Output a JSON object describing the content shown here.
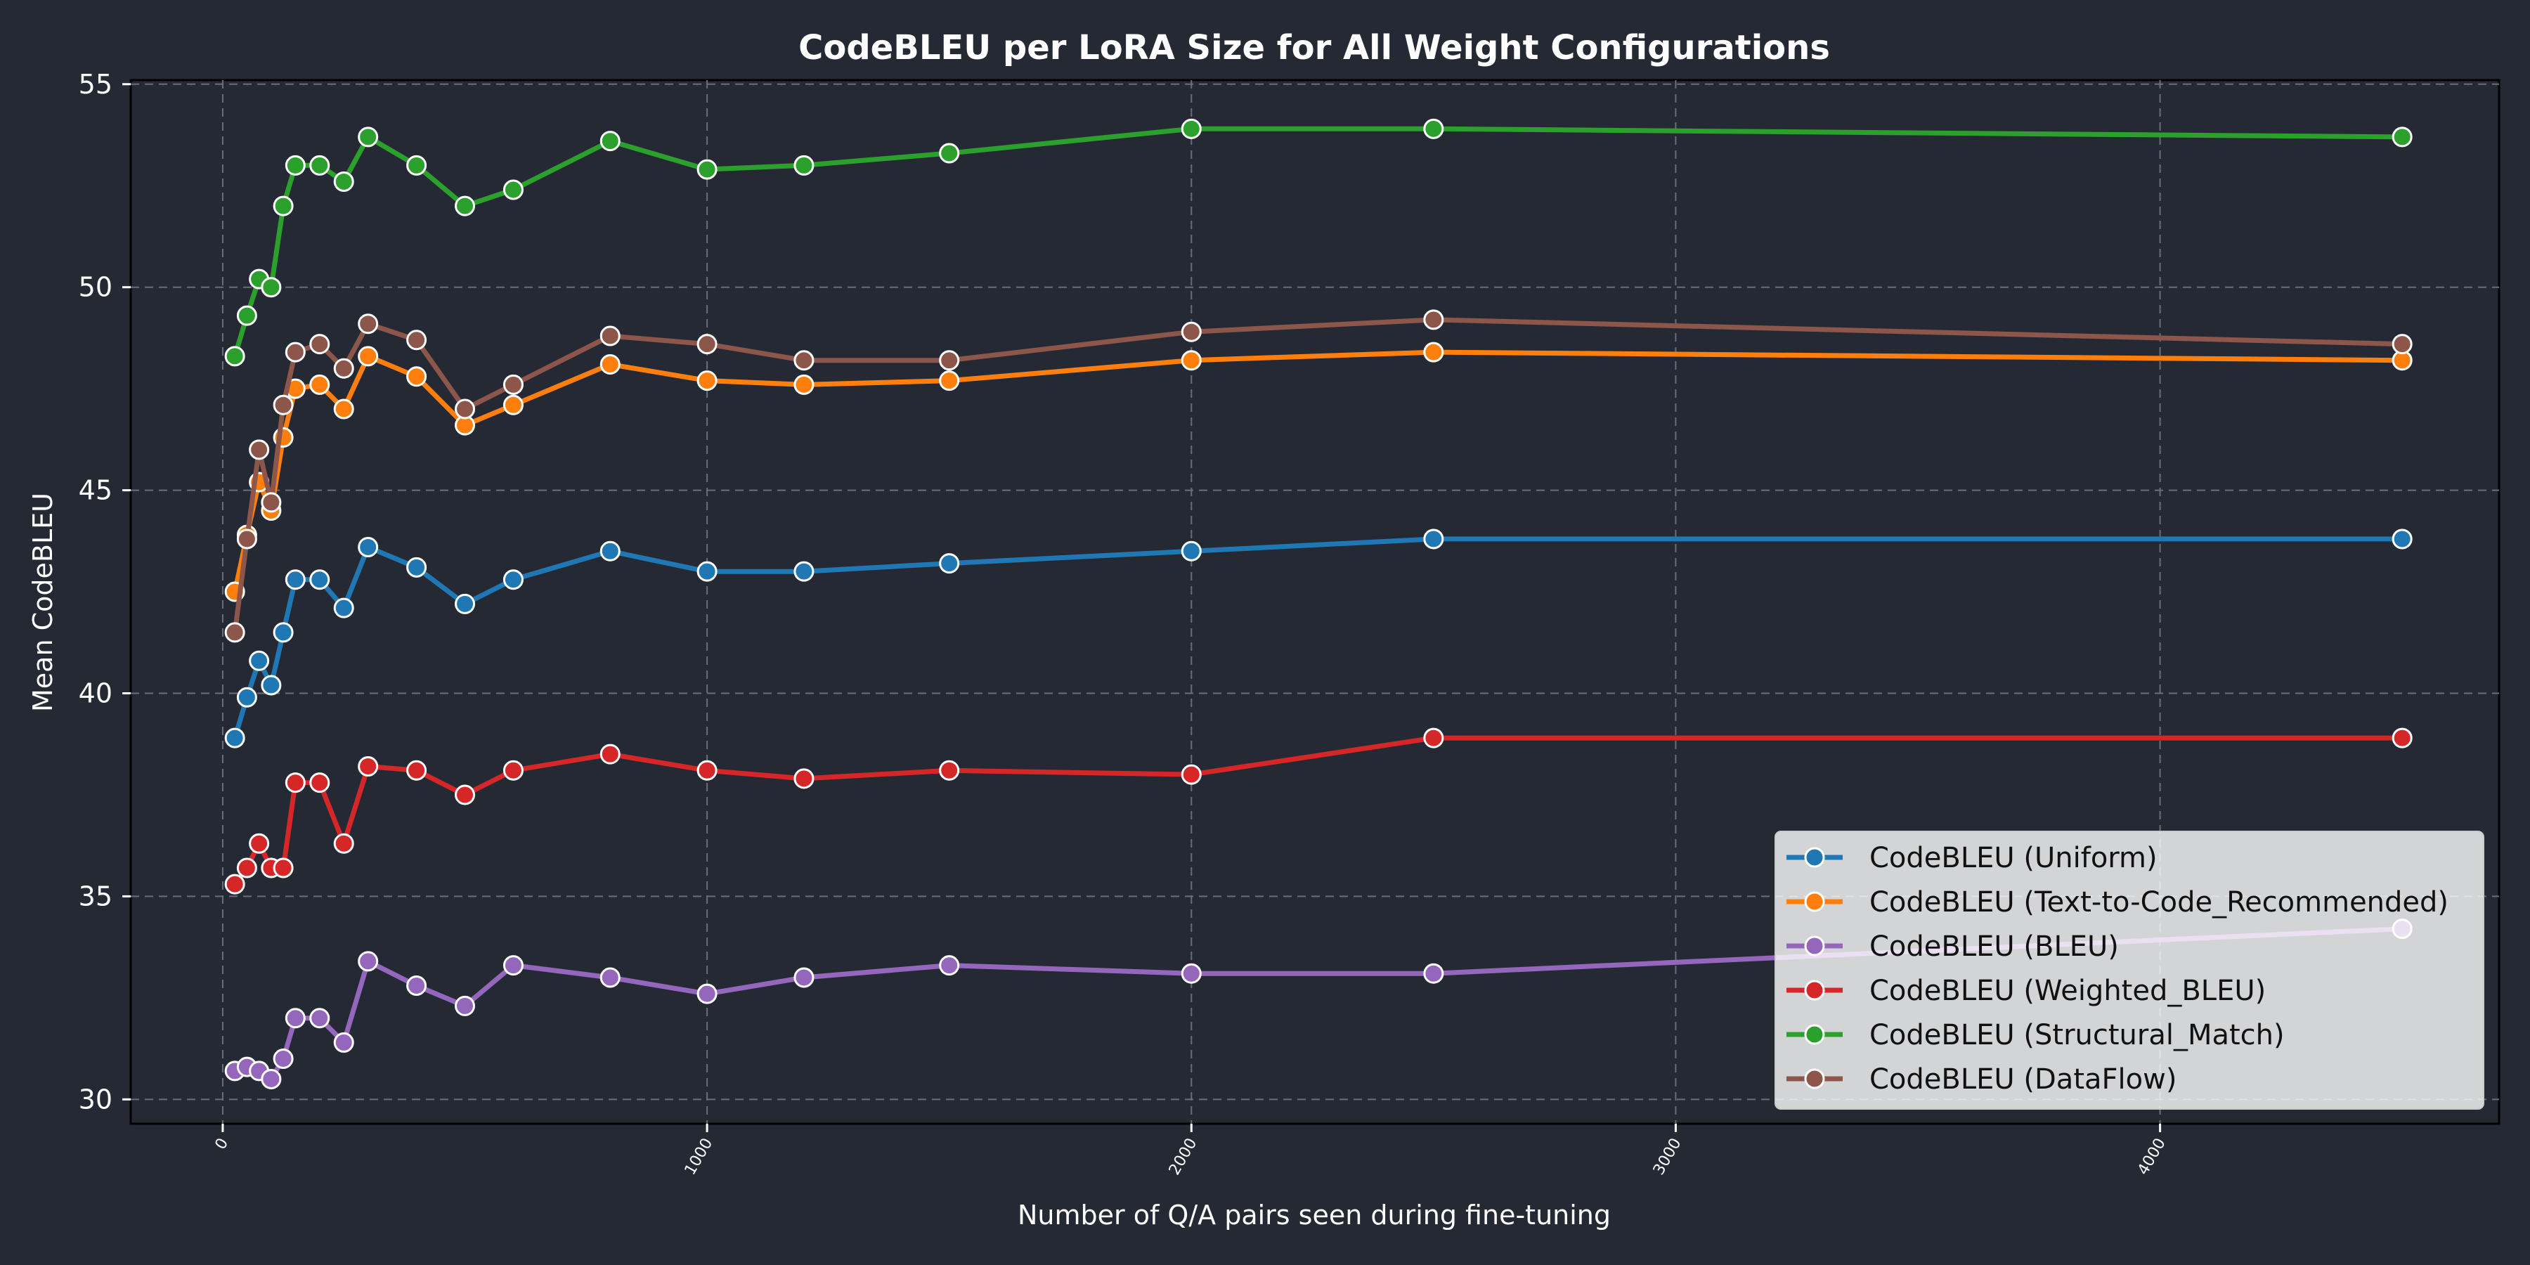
{
  "chart_data": {
    "type": "line",
    "title": "CodeBLEU per LoRA Size for All Weight Configurations",
    "xlabel": "Number of Q/A pairs seen during fine-tuning",
    "ylabel": "Mean CodeBLEU",
    "xlim": [
      -190,
      4700
    ],
    "ylim": [
      29.4,
      55.1
    ],
    "xticks": [
      0,
      1000,
      2000,
      3000,
      4000
    ],
    "xtick_labels": [
      "0",
      "1000",
      "2000",
      "3000",
      "4000"
    ],
    "yticks": [
      30,
      35,
      40,
      45,
      50,
      55
    ],
    "ytick_labels": [
      "30",
      "35",
      "40",
      "45",
      "50",
      "55"
    ],
    "grid": true,
    "legend_position": "lower-right",
    "x": [
      25,
      50,
      75,
      100,
      125,
      150,
      200,
      250,
      300,
      400,
      500,
      600,
      800,
      1000,
      1200,
      1500,
      2000,
      2500,
      4500
    ],
    "series": [
      {
        "name": "CodeBLEU (Uniform)",
        "color": "#1f77b4",
        "values": [
          38.9,
          39.9,
          40.8,
          40.2,
          41.5,
          42.8,
          42.8,
          42.1,
          43.6,
          43.1,
          42.2,
          42.8,
          43.5,
          43.0,
          43.0,
          43.2,
          43.5,
          43.8,
          43.8
        ]
      },
      {
        "name": "CodeBLEU (Text-to-Code_Recommended)",
        "color": "#ff7f0e",
        "values": [
          42.5,
          43.9,
          45.2,
          44.5,
          46.3,
          47.5,
          47.6,
          47.0,
          48.3,
          47.8,
          46.6,
          47.1,
          48.1,
          47.7,
          47.6,
          47.7,
          48.2,
          48.4,
          48.2
        ]
      },
      {
        "name": "CodeBLEU (BLEU)",
        "color": "#9467bd",
        "values": [
          30.7,
          30.8,
          30.7,
          30.5,
          31.0,
          32.0,
          32.0,
          31.4,
          33.4,
          32.8,
          32.3,
          33.3,
          33.0,
          32.6,
          33.0,
          33.3,
          33.1,
          33.1,
          34.2
        ]
      },
      {
        "name": "CodeBLEU (Weighted_BLEU)",
        "color": "#d62728",
        "values": [
          35.3,
          35.7,
          36.3,
          35.7,
          35.7,
          37.8,
          37.8,
          36.3,
          38.2,
          38.1,
          37.5,
          38.1,
          38.5,
          38.1,
          37.9,
          38.1,
          38.0,
          38.9,
          38.9
        ]
      },
      {
        "name": "CodeBLEU (Structural_Match)",
        "color": "#2ca02c",
        "values": [
          48.3,
          49.3,
          50.2,
          50.0,
          52.0,
          53.0,
          53.0,
          52.6,
          53.7,
          53.0,
          52.0,
          52.4,
          53.6,
          52.9,
          53.0,
          53.3,
          53.9,
          53.9,
          53.7
        ]
      },
      {
        "name": "CodeBLEU (DataFlow)",
        "color": "#8c564b",
        "values": [
          41.5,
          43.8,
          46.0,
          44.7,
          47.1,
          48.4,
          48.6,
          48.0,
          49.1,
          48.7,
          47.0,
          47.6,
          48.8,
          48.6,
          48.2,
          48.2,
          48.9,
          49.2,
          48.6
        ]
      }
    ]
  }
}
